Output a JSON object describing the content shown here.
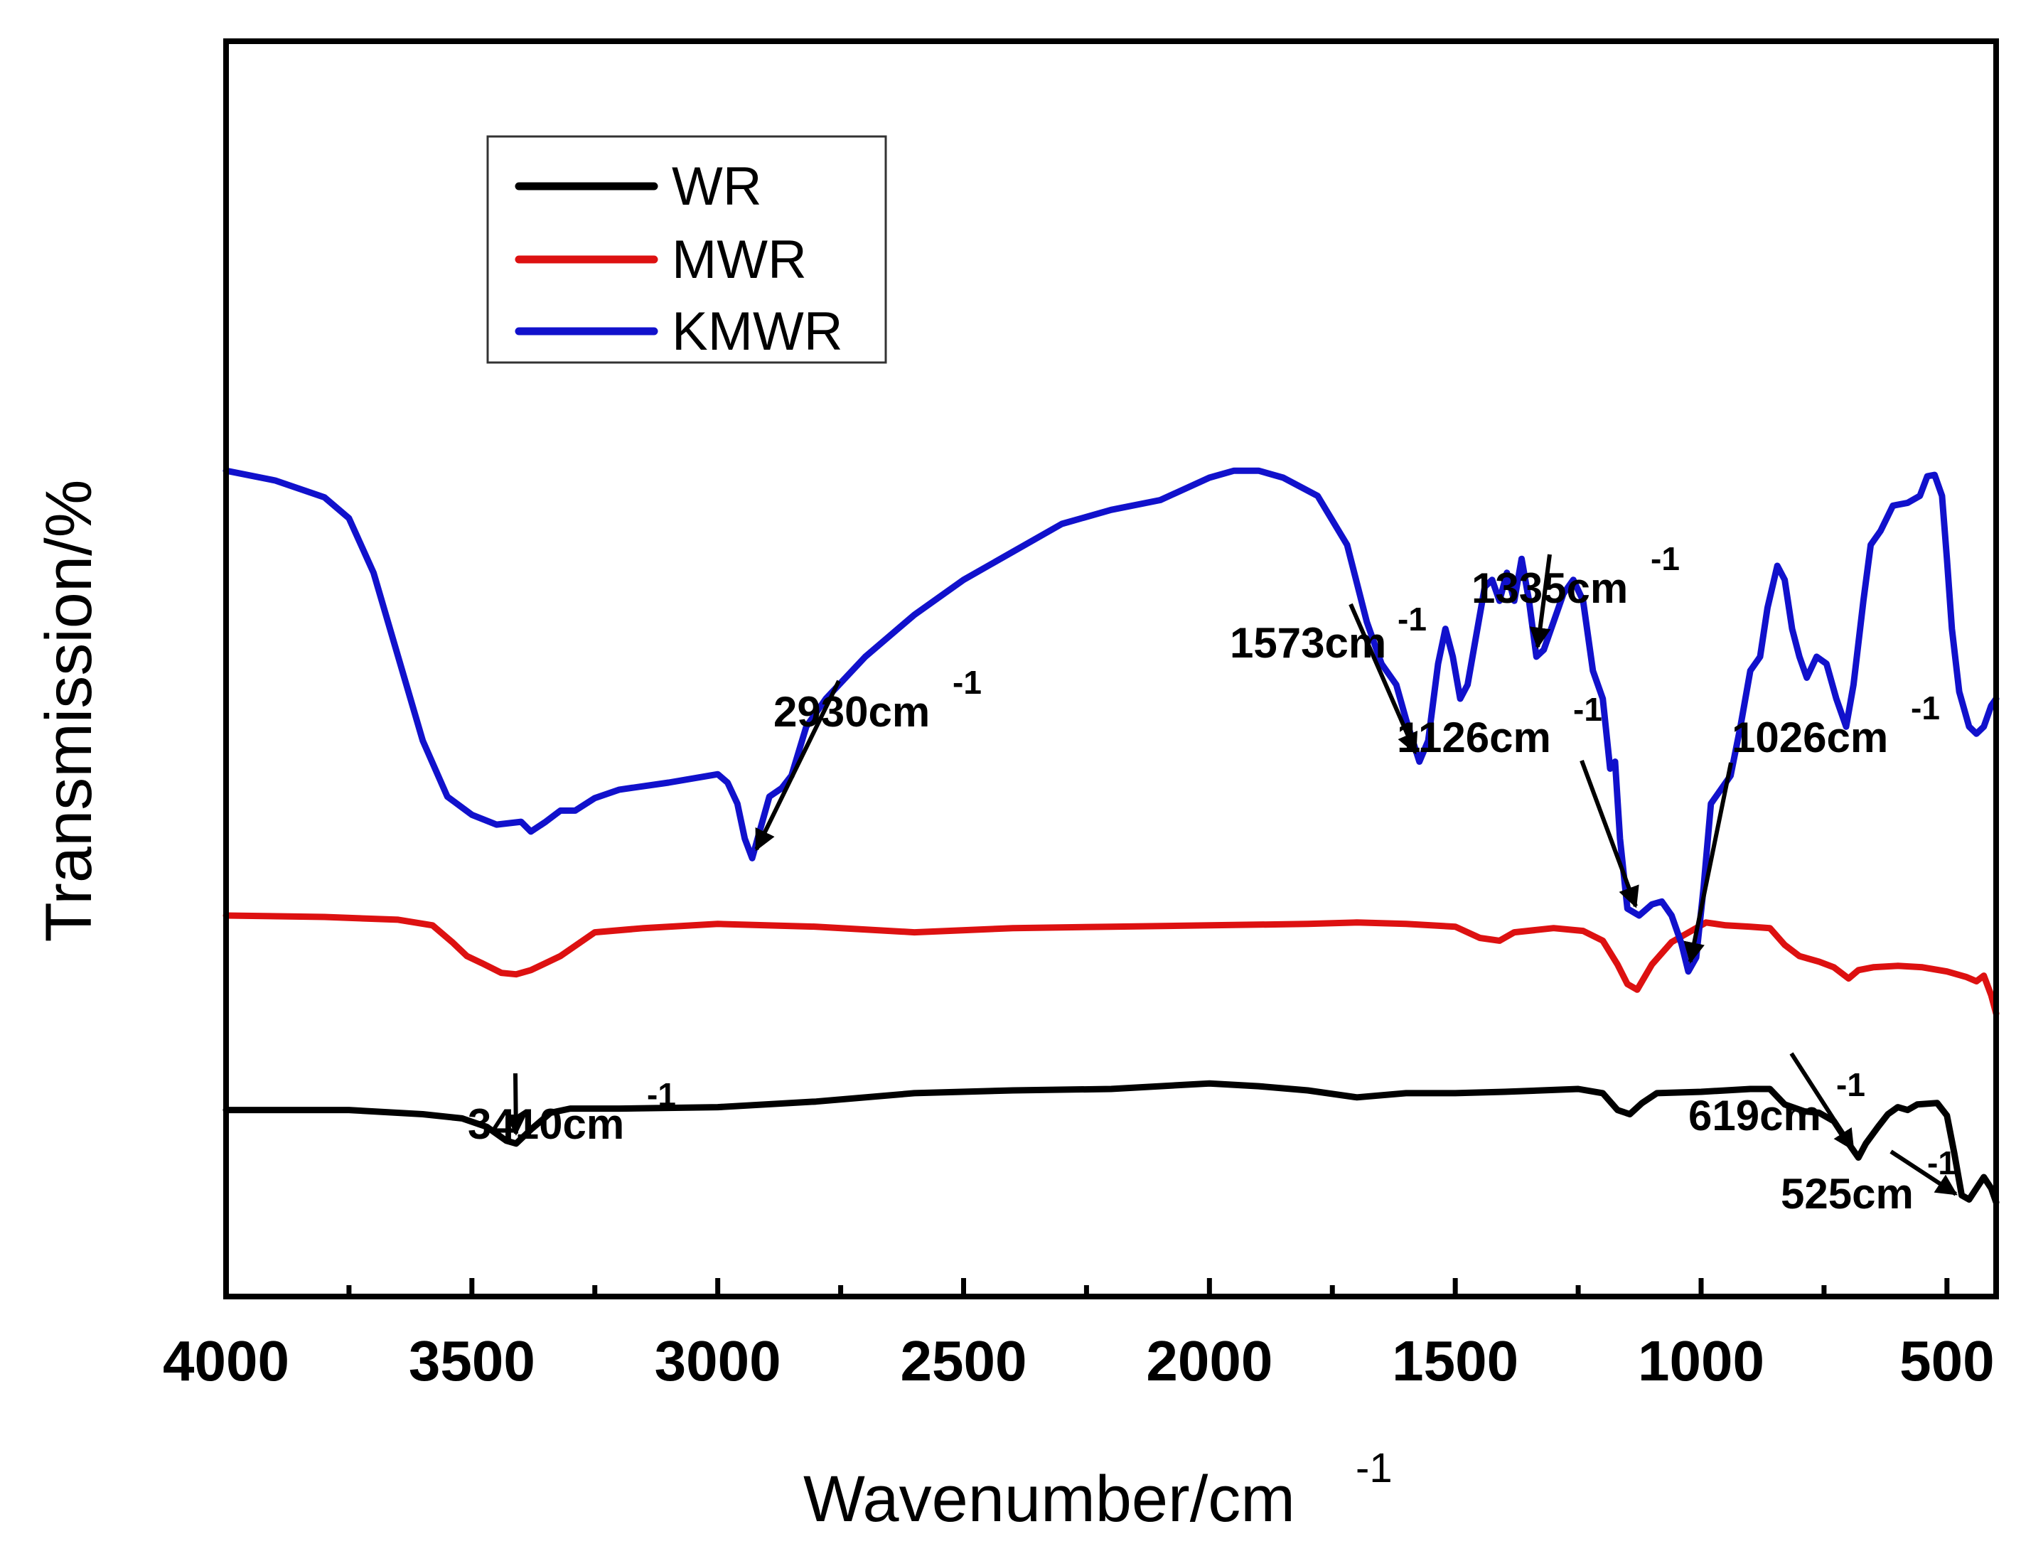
{
  "chart_data": {
    "type": "line",
    "title": "",
    "xlabel": "Wavenumber/cm",
    "xlabel_sup": "-1",
    "ylabel": "Transmission/%",
    "xlim": [
      4000,
      400
    ],
    "ylim": [
      0,
      100
    ],
    "x_reversed": true,
    "y_tick_labels": false,
    "xticks": [
      4000,
      3500,
      3000,
      2500,
      2000,
      1500,
      1000,
      500
    ],
    "xtick_labels": [
      "4000",
      "3500",
      "3000",
      "2500",
      "2000",
      "1500",
      "1000",
      "500"
    ],
    "legend_position": "top-left",
    "series": [
      {
        "name": "WR",
        "color": "#000000",
        "points": [
          [
            4000,
            23.6
          ],
          [
            3750,
            23.6
          ],
          [
            3600,
            23.3
          ],
          [
            3520,
            23.0
          ],
          [
            3470,
            22.4
          ],
          [
            3430,
            21.4
          ],
          [
            3410,
            21.2
          ],
          [
            3380,
            22.2
          ],
          [
            3340,
            23.4
          ],
          [
            3300,
            23.7
          ],
          [
            3200,
            23.7
          ],
          [
            3000,
            23.8
          ],
          [
            2800,
            24.2
          ],
          [
            2600,
            24.8
          ],
          [
            2400,
            25.0
          ],
          [
            2200,
            25.1
          ],
          [
            2000,
            25.5
          ],
          [
            1900,
            25.3
          ],
          [
            1800,
            25.0
          ],
          [
            1700,
            24.5
          ],
          [
            1600,
            24.8
          ],
          [
            1500,
            24.8
          ],
          [
            1400,
            24.9
          ],
          [
            1250,
            25.1
          ],
          [
            1200,
            24.8
          ],
          [
            1170,
            23.6
          ],
          [
            1145,
            23.3
          ],
          [
            1120,
            24.1
          ],
          [
            1090,
            24.8
          ],
          [
            1000,
            24.9
          ],
          [
            900,
            25.1
          ],
          [
            860,
            25.1
          ],
          [
            830,
            24.0
          ],
          [
            790,
            23.5
          ],
          [
            760,
            23.4
          ],
          [
            730,
            22.8
          ],
          [
            700,
            21.2
          ],
          [
            680,
            20.2
          ],
          [
            665,
            21.2
          ],
          [
            640,
            22.4
          ],
          [
            620,
            23.3
          ],
          [
            600,
            23.8
          ],
          [
            580,
            23.6
          ],
          [
            560,
            24.0
          ],
          [
            520,
            24.1
          ],
          [
            500,
            23.2
          ],
          [
            485,
            20.5
          ],
          [
            470,
            17.5
          ],
          [
            455,
            17.2
          ],
          [
            440,
            18.0
          ],
          [
            425,
            18.8
          ],
          [
            410,
            18.0
          ],
          [
            400,
            17.0
          ]
        ]
      },
      {
        "name": "MWR",
        "color": "#dd1111",
        "points": [
          [
            4000,
            37.5
          ],
          [
            3800,
            37.4
          ],
          [
            3650,
            37.2
          ],
          [
            3580,
            36.8
          ],
          [
            3540,
            35.6
          ],
          [
            3510,
            34.6
          ],
          [
            3480,
            34.1
          ],
          [
            3440,
            33.4
          ],
          [
            3410,
            33.3
          ],
          [
            3380,
            33.6
          ],
          [
            3320,
            34.6
          ],
          [
            3250,
            36.3
          ],
          [
            3150,
            36.6
          ],
          [
            3000,
            36.9
          ],
          [
            2800,
            36.7
          ],
          [
            2600,
            36.3
          ],
          [
            2400,
            36.6
          ],
          [
            2200,
            36.7
          ],
          [
            2000,
            36.8
          ],
          [
            1800,
            36.9
          ],
          [
            1700,
            37.0
          ],
          [
            1600,
            36.9
          ],
          [
            1500,
            36.7
          ],
          [
            1450,
            35.9
          ],
          [
            1410,
            35.7
          ],
          [
            1380,
            36.3
          ],
          [
            1300,
            36.6
          ],
          [
            1240,
            36.4
          ],
          [
            1200,
            35.7
          ],
          [
            1170,
            34.0
          ],
          [
            1150,
            32.6
          ],
          [
            1130,
            32.2
          ],
          [
            1100,
            34.0
          ],
          [
            1060,
            35.6
          ],
          [
            1020,
            36.4
          ],
          [
            990,
            37.0
          ],
          [
            950,
            36.8
          ],
          [
            900,
            36.7
          ],
          [
            860,
            36.6
          ],
          [
            830,
            35.4
          ],
          [
            800,
            34.6
          ],
          [
            760,
            34.2
          ],
          [
            730,
            33.8
          ],
          [
            700,
            33.0
          ],
          [
            680,
            33.6
          ],
          [
            650,
            33.8
          ],
          [
            600,
            33.9
          ],
          [
            550,
            33.8
          ],
          [
            500,
            33.5
          ],
          [
            460,
            33.1
          ],
          [
            440,
            32.8
          ],
          [
            425,
            33.2
          ],
          [
            410,
            31.8
          ],
          [
            400,
            30.5
          ]
        ]
      },
      {
        "name": "KMWR",
        "color": "#1111cc",
        "points": [
          [
            4000,
            69.3
          ],
          [
            3900,
            68.6
          ],
          [
            3800,
            67.4
          ],
          [
            3750,
            65.9
          ],
          [
            3700,
            62.0
          ],
          [
            3650,
            56.0
          ],
          [
            3600,
            50.0
          ],
          [
            3550,
            46.0
          ],
          [
            3500,
            44.7
          ],
          [
            3450,
            44.0
          ],
          [
            3400,
            44.2
          ],
          [
            3380,
            43.5
          ],
          [
            3350,
            44.2
          ],
          [
            3320,
            45.0
          ],
          [
            3290,
            45.0
          ],
          [
            3250,
            45.9
          ],
          [
            3200,
            46.5
          ],
          [
            3100,
            47.0
          ],
          [
            3000,
            47.6
          ],
          [
            2980,
            47.0
          ],
          [
            2960,
            45.5
          ],
          [
            2945,
            43.0
          ],
          [
            2930,
            41.6
          ],
          [
            2915,
            43.5
          ],
          [
            2895,
            46.0
          ],
          [
            2870,
            46.6
          ],
          [
            2850,
            47.5
          ],
          [
            2820,
            51.0
          ],
          [
            2780,
            53.0
          ],
          [
            2700,
            56.0
          ],
          [
            2600,
            59.0
          ],
          [
            2500,
            61.5
          ],
          [
            2400,
            63.5
          ],
          [
            2300,
            65.5
          ],
          [
            2200,
            66.5
          ],
          [
            2100,
            67.2
          ],
          [
            2000,
            68.8
          ],
          [
            1950,
            69.3
          ],
          [
            1900,
            69.3
          ],
          [
            1850,
            68.8
          ],
          [
            1780,
            67.5
          ],
          [
            1720,
            64.0
          ],
          [
            1680,
            58.5
          ],
          [
            1650,
            55.5
          ],
          [
            1620,
            54.0
          ],
          [
            1600,
            51.5
          ],
          [
            1573,
            48.5
          ],
          [
            1555,
            50.0
          ],
          [
            1535,
            55.5
          ],
          [
            1520,
            58.0
          ],
          [
            1505,
            56.0
          ],
          [
            1490,
            53.0
          ],
          [
            1475,
            54.0
          ],
          [
            1455,
            58.0
          ],
          [
            1440,
            61.0
          ],
          [
            1425,
            61.5
          ],
          [
            1410,
            60.0
          ],
          [
            1395,
            62.0
          ],
          [
            1380,
            60.0
          ],
          [
            1365,
            63.0
          ],
          [
            1350,
            60.0
          ],
          [
            1335,
            56.0
          ],
          [
            1320,
            56.5
          ],
          [
            1300,
            58.5
          ],
          [
            1280,
            60.5
          ],
          [
            1260,
            61.5
          ],
          [
            1240,
            60.0
          ],
          [
            1220,
            55.0
          ],
          [
            1200,
            53.0
          ],
          [
            1185,
            48.0
          ],
          [
            1175,
            48.5
          ],
          [
            1165,
            43.0
          ],
          [
            1150,
            38.0
          ],
          [
            1126,
            37.5
          ],
          [
            1100,
            38.3
          ],
          [
            1080,
            38.5
          ],
          [
            1060,
            37.5
          ],
          [
            1040,
            35.5
          ],
          [
            1026,
            33.5
          ],
          [
            1010,
            34.5
          ],
          [
            995,
            39.5
          ],
          [
            980,
            45.5
          ],
          [
            960,
            46.5
          ],
          [
            940,
            47.5
          ],
          [
            920,
            51.0
          ],
          [
            900,
            55.0
          ],
          [
            880,
            56.0
          ],
          [
            865,
            59.5
          ],
          [
            845,
            62.5
          ],
          [
            830,
            61.5
          ],
          [
            815,
            58.0
          ],
          [
            800,
            56.0
          ],
          [
            785,
            54.5
          ],
          [
            765,
            56.0
          ],
          [
            745,
            55.5
          ],
          [
            725,
            53.0
          ],
          [
            705,
            51.0
          ],
          [
            690,
            54.0
          ],
          [
            670,
            60.0
          ],
          [
            655,
            64.0
          ],
          [
            635,
            65.0
          ],
          [
            610,
            66.8
          ],
          [
            580,
            67.0
          ],
          [
            555,
            67.5
          ],
          [
            540,
            68.9
          ],
          [
            525,
            69.0
          ],
          [
            510,
            67.5
          ],
          [
            500,
            63.0
          ],
          [
            490,
            58.0
          ],
          [
            475,
            53.5
          ],
          [
            455,
            51.0
          ],
          [
            440,
            50.5
          ],
          [
            425,
            51.0
          ],
          [
            410,
            52.5
          ],
          [
            400,
            53.0
          ]
        ]
      }
    ],
    "annotations": [
      {
        "text": "2930cm",
        "sup": "-1",
        "x": 2930,
        "y": 41.6
      },
      {
        "text": "1573cm",
        "sup": "-1",
        "x": 1573,
        "y": 48.5
      },
      {
        "text": "1335cm",
        "sup": "-1",
        "x": 1335,
        "y": 56.0
      },
      {
        "text": "1126cm",
        "sup": "-1",
        "x": 1126,
        "y": 37.5
      },
      {
        "text": "1026cm",
        "sup": "-1",
        "x": 1026,
        "y": 33.5
      },
      {
        "text": "3410cm",
        "sup": "-1",
        "x": 3410,
        "y": 21.2
      },
      {
        "text": "619cm",
        "sup": "-1",
        "x": 680,
        "y": 20.2
      },
      {
        "text": "525cm",
        "sup": "-1",
        "x": 465,
        "y": 17.2
      }
    ]
  }
}
